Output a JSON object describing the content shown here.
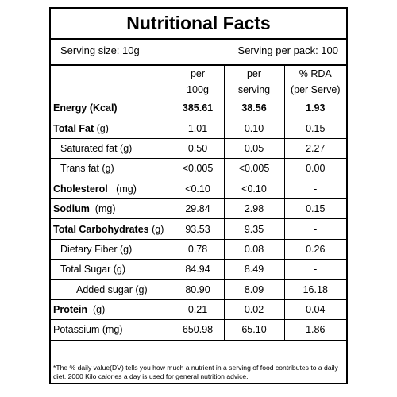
{
  "label": {
    "title": "Nutritional Facts",
    "serving_size": "Serving size: 10g",
    "servings_per_pack": "Serving per pack: 100",
    "columns": {
      "per_100g_line1": "per",
      "per_100g_line2": "100g",
      "per_serving_line1": "per",
      "per_serving_line2": "serving",
      "rda_line1": "% RDA",
      "rda_line2": "(per Serve)"
    },
    "rows": [
      {
        "name_bold": "Energy (Kcal)",
        "name_unit": "",
        "per100g": "385.61",
        "perServing": "38.56",
        "rda": "1.93"
      },
      {
        "name_bold": "Total Fat",
        "name_unit": " (g)",
        "per100g": "1.01",
        "perServing": "0.10",
        "rda": "0.15"
      },
      {
        "name_bold": "",
        "name_unit": "Saturated fat (g)",
        "per100g": "0.50",
        "perServing": "0.05",
        "rda": "2.27"
      },
      {
        "name_bold": "",
        "name_unit": "Trans fat (g)",
        "per100g": "<0.005",
        "perServing": "<0.005",
        "rda": "0.00"
      },
      {
        "name_bold": "Cholesterol",
        "name_unit": "   (mg)",
        "per100g": "<0.10",
        "perServing": "<0.10",
        "rda": "-"
      },
      {
        "name_bold": "Sodium",
        "name_unit": "  (mg)",
        "per100g": "29.84",
        "perServing": "2.98",
        "rda": "0.15"
      },
      {
        "name_bold": "Total Carbohydrates",
        "name_unit": " (g)",
        "per100g": "93.53",
        "perServing": "9.35",
        "rda": "-"
      },
      {
        "name_bold": "",
        "name_unit": "Dietary Fiber (g)",
        "per100g": "0.78",
        "perServing": "0.08",
        "rda": "0.26"
      },
      {
        "name_bold": "",
        "name_unit": "Total Sugar (g)",
        "per100g": "84.94",
        "perServing": "8.49",
        "rda": "-"
      },
      {
        "name_bold": "",
        "name_unit": "Added sugar (g)",
        "per100g": "80.90",
        "perServing": "8.09",
        "rda": "16.18"
      },
      {
        "name_bold": "Protein",
        "name_unit": "  (g)",
        "per100g": "0.21",
        "perServing": "0.02",
        "rda": "0.04"
      },
      {
        "name_bold": "",
        "name_unit": "Potassium (mg)",
        "per100g": "650.98",
        "perServing": "65.10",
        "rda": "1.86"
      }
    ],
    "footnote": "*The % daily value(DV) tells you how much a nutrient in a serving of food contributes to a daily diet. 2000 Kilo calories a day is used for general nutrition advice."
  }
}
